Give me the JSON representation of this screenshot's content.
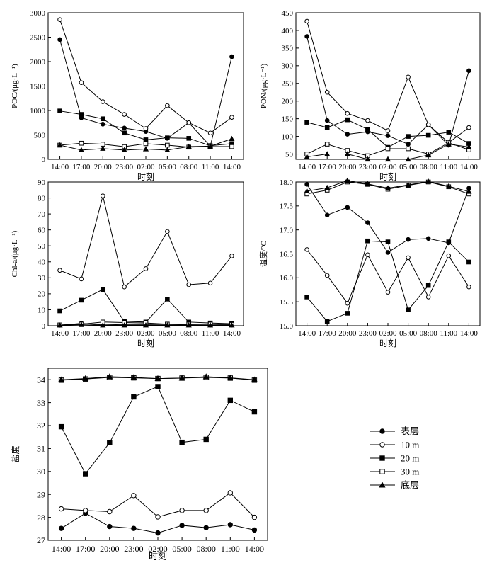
{
  "chart_data": [
    {
      "id": "poc",
      "type": "line",
      "ylabel": "POC/(μg·L⁻¹)",
      "xlabel": "时刻",
      "ylim": [
        0,
        3000
      ],
      "yticks": [
        0,
        500,
        1000,
        1500,
        2000,
        2500,
        3000
      ],
      "categories": [
        "14:00",
        "17:00",
        "20:00",
        "23:00",
        "02:00",
        "05:00",
        "08:00",
        "11:00",
        "14:00"
      ],
      "series": [
        {
          "name": "表层",
          "values": [
            2450,
            850,
            720,
            640,
            570,
            430,
            750,
            270,
            2100
          ]
        },
        {
          "name": "10 m",
          "values": [
            2860,
            1570,
            1180,
            920,
            630,
            1100,
            750,
            540,
            860
          ]
        },
        {
          "name": "20 m",
          "values": [
            990,
            920,
            830,
            540,
            400,
            440,
            430,
            280,
            320
          ]
        },
        {
          "name": "30 m",
          "values": [
            290,
            330,
            310,
            260,
            320,
            290,
            250,
            260,
            260
          ]
        },
        {
          "name": "底层",
          "values": [
            290,
            190,
            220,
            190,
            210,
            190,
            260,
            270,
            420
          ]
        }
      ]
    },
    {
      "id": "pon",
      "type": "line",
      "ylabel": "PON/(μg·L⁻¹)",
      "xlabel": "时刻",
      "ylim": [
        35,
        450
      ],
      "yticks": [
        50,
        100,
        150,
        200,
        250,
        300,
        350,
        400,
        450
      ],
      "categories": [
        "14:00",
        "17:00",
        "20:00",
        "23:00",
        "02:00",
        "05:00",
        "08:00",
        "11:00",
        "14:00"
      ],
      "series": [
        {
          "name": "表层",
          "values": [
            383,
            145,
            106,
            113,
            102,
            78,
            133,
            75,
            286
          ]
        },
        {
          "name": "10 m",
          "values": [
            426,
            225,
            165,
            145,
            116,
            268,
            133,
            82,
            125
          ]
        },
        {
          "name": "20 m",
          "values": [
            140,
            125,
            147,
            120,
            69,
            100,
            103,
            112,
            80
          ]
        },
        {
          "name": "30 m",
          "values": [
            50,
            78,
            60,
            45,
            65,
            65,
            50,
            82,
            62
          ]
        },
        {
          "name": "底层",
          "values": [
            42,
            50,
            50,
            35,
            35,
            35,
            47,
            78,
            70
          ]
        }
      ]
    },
    {
      "id": "chla",
      "type": "line",
      "ylabel": "Chl-a/(μg·L⁻¹)",
      "xlabel": "时刻",
      "ylim": [
        0,
        90
      ],
      "yticks": [
        0,
        10,
        20,
        30,
        40,
        50,
        60,
        70,
        80,
        90
      ],
      "categories": [
        "14:00",
        "17:00",
        "20:00",
        "23:00",
        "02:00",
        "05:00",
        "08:00",
        "11:00",
        "14:00"
      ],
      "series": [
        {
          "name": "表层",
          "values": [
            0.3,
            1.5,
            0.5,
            0.8,
            0.8,
            0.8,
            0.6,
            0.4,
            0.4
          ]
        },
        {
          "name": "10 m",
          "values": [
            34.7,
            29.3,
            81.3,
            24.3,
            35.7,
            59.0,
            25.7,
            26.7,
            43.7
          ]
        },
        {
          "name": "20 m",
          "values": [
            9.3,
            16.0,
            22.7,
            2.7,
            2.3,
            16.7,
            2.3,
            1.7,
            1.3
          ]
        },
        {
          "name": "30 m",
          "values": [
            0.5,
            1.0,
            2.3,
            2.0,
            1.7,
            1.0,
            1.0,
            1.0,
            0.8
          ]
        },
        {
          "name": "底层",
          "values": [
            0.3,
            0.6,
            0.3,
            0.3,
            0.3,
            0.3,
            0.3,
            0.3,
            0.3
          ]
        }
      ]
    },
    {
      "id": "temp",
      "type": "line",
      "ylabel": "温度/°C",
      "xlabel": "时刻",
      "ylim": [
        15.0,
        18.0
      ],
      "yticks": [
        15.0,
        15.5,
        16.0,
        16.5,
        17.0,
        17.5,
        18.0
      ],
      "categories": [
        "14:00",
        "17:00",
        "20:00",
        "23:00",
        "02:00",
        "05:00",
        "08:00",
        "11:00",
        "14:00"
      ],
      "series": [
        {
          "name": "表层",
          "values": [
            17.95,
            17.31,
            17.47,
            17.15,
            16.53,
            16.8,
            16.82,
            16.73,
            17.87
          ]
        },
        {
          "name": "10 m",
          "values": [
            16.59,
            16.05,
            15.47,
            16.48,
            15.7,
            16.42,
            15.6,
            16.46,
            15.81
          ]
        },
        {
          "name": "20 m",
          "values": [
            15.6,
            15.09,
            15.26,
            16.77,
            16.75,
            15.33,
            15.84,
            16.75,
            16.33
          ]
        },
        {
          "name": "30 m",
          "values": [
            17.75,
            17.83,
            18.0,
            17.95,
            17.85,
            17.93,
            18.0,
            17.9,
            17.75
          ]
        },
        {
          "name": "底层",
          "values": [
            17.81,
            17.88,
            18.03,
            17.96,
            17.87,
            17.94,
            18.01,
            17.91,
            17.8
          ]
        }
      ]
    },
    {
      "id": "sal",
      "type": "line",
      "ylabel": "盐度",
      "xlabel": "时刻",
      "ylim": [
        27,
        34.5
      ],
      "yticks": [
        27,
        28,
        29,
        30,
        31,
        32,
        33,
        34
      ],
      "categories": [
        "14:00",
        "17:00",
        "20:00",
        "23:00",
        "02:00",
        "05:00",
        "08:00",
        "11:00",
        "14:00"
      ],
      "series": [
        {
          "name": "表层",
          "values": [
            27.52,
            28.18,
            27.6,
            27.52,
            27.32,
            27.65,
            27.55,
            27.68,
            27.45
          ]
        },
        {
          "name": "10 m",
          "values": [
            28.37,
            28.3,
            28.25,
            28.95,
            28.02,
            28.3,
            28.3,
            29.07,
            28.0
          ]
        },
        {
          "name": "20 m",
          "values": [
            31.95,
            29.9,
            31.25,
            33.25,
            33.7,
            31.27,
            31.4,
            33.1,
            32.6
          ]
        },
        {
          "name": "30 m",
          "values": [
            33.98,
            34.03,
            34.1,
            34.08,
            34.05,
            34.07,
            34.1,
            34.07,
            33.98
          ]
        },
        {
          "name": "底层",
          "values": [
            34.0,
            34.05,
            34.13,
            34.1,
            34.05,
            34.07,
            34.13,
            34.08,
            34.0
          ]
        }
      ]
    }
  ],
  "legend": [
    {
      "label": "表层",
      "marker": "filled-circle"
    },
    {
      "label": "10 m",
      "marker": "open-circle"
    },
    {
      "label": "20 m",
      "marker": "filled-square"
    },
    {
      "label": "30 m",
      "marker": "open-square"
    },
    {
      "label": "底层",
      "marker": "filled-triangle"
    }
  ]
}
